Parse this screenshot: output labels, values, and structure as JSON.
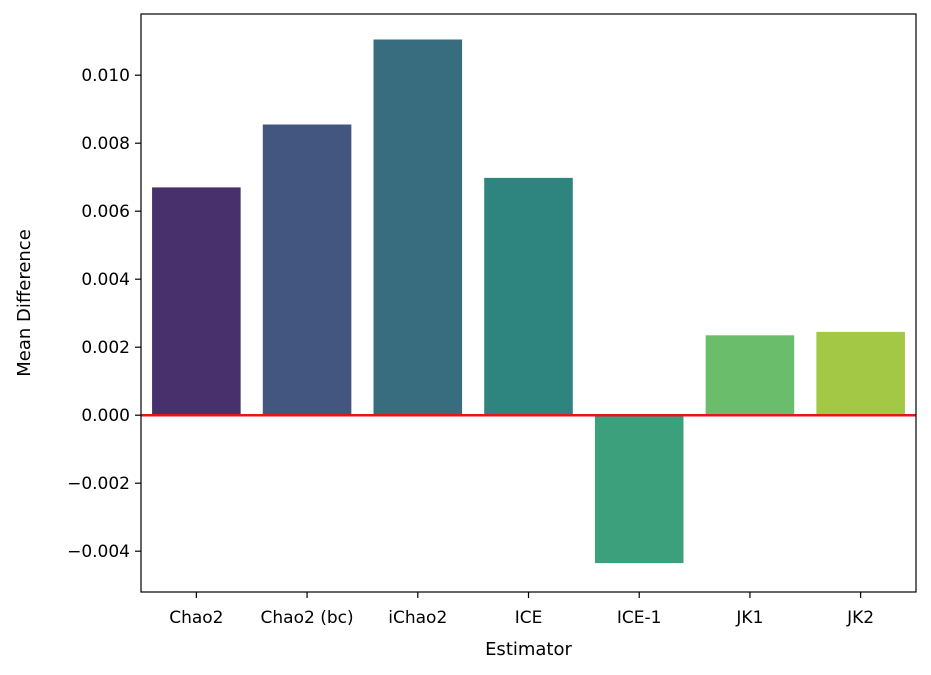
{
  "chart_data": {
    "type": "bar",
    "categories": [
      "Chao2",
      "Chao2 (bc)",
      "iChao2",
      "ICE",
      "ICE-1",
      "JK1",
      "JK2"
    ],
    "values": [
      0.0067,
      0.00855,
      0.01105,
      0.00698,
      -0.00435,
      0.00235,
      0.00245
    ],
    "colors": [
      "#48306d",
      "#43567f",
      "#386d80",
      "#2e8580",
      "#3da07d",
      "#6abd6b",
      "#a2c846"
    ],
    "xlabel": "Estimator",
    "ylabel": "Mean Difference",
    "ylim": [
      -0.0052,
      0.0118
    ],
    "yticks": [
      -0.004,
      -0.002,
      0.0,
      0.002,
      0.004,
      0.006,
      0.008,
      0.01
    ],
    "ytick_labels": [
      "−0.004",
      "−0.002",
      "0.000",
      "0.002",
      "0.004",
      "0.006",
      "0.008",
      "0.010"
    ],
    "reference_line": {
      "y": 0,
      "color": "#e8141c"
    },
    "grid": false,
    "legend": "none"
  }
}
